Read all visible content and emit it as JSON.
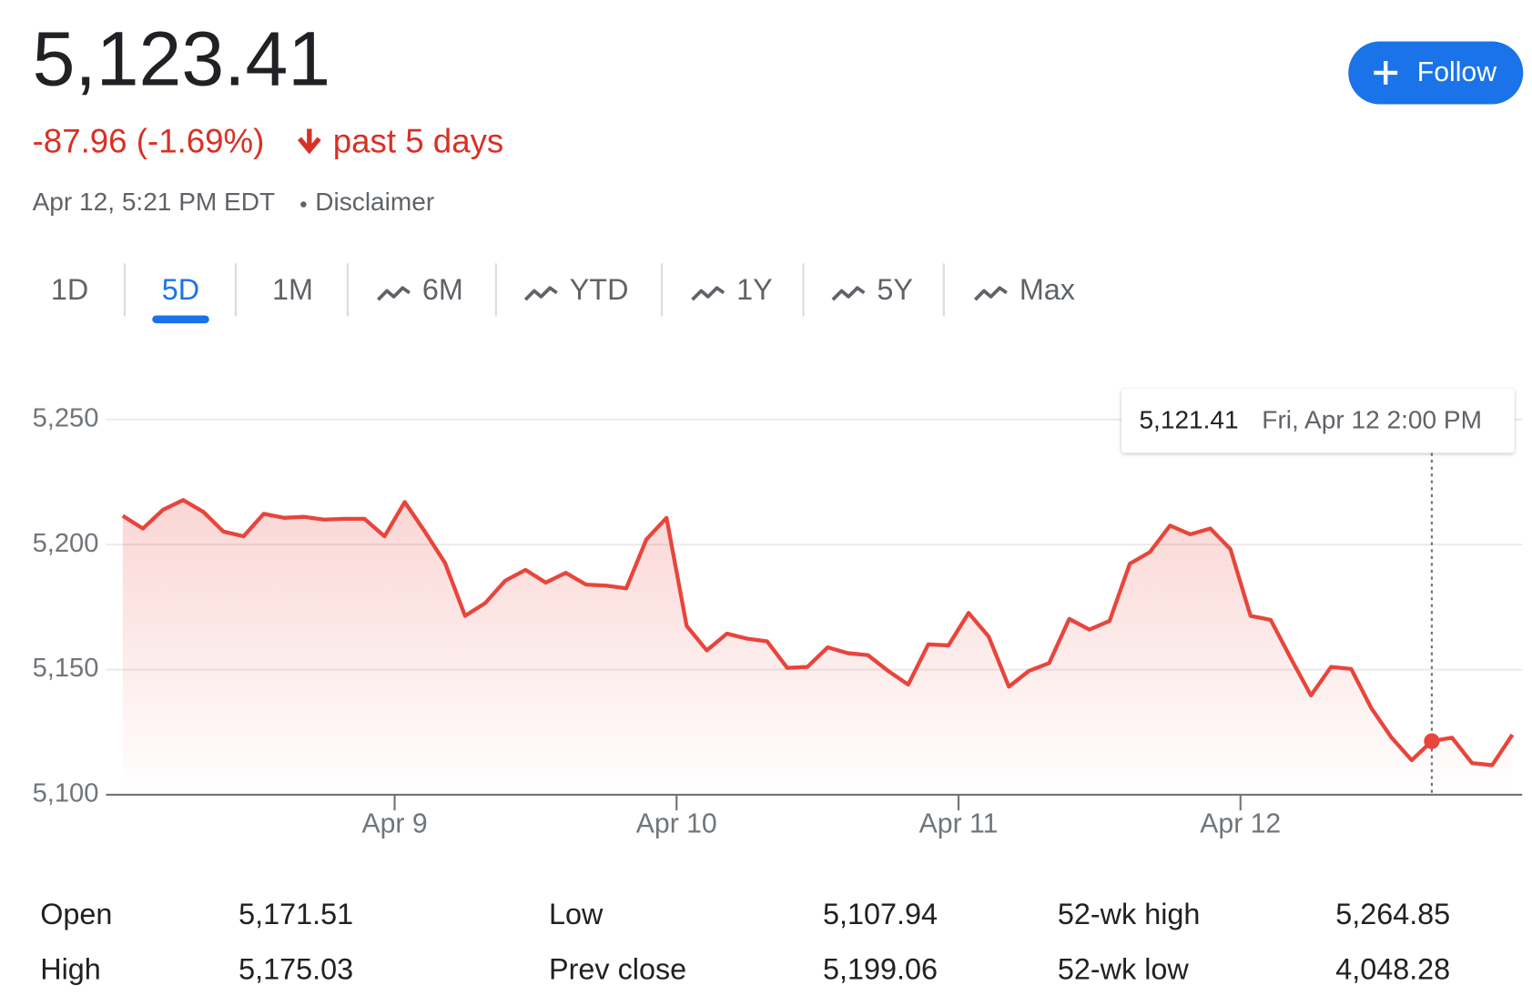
{
  "header": {
    "price": "5,123.41",
    "change": "-87.96 (-1.69%)",
    "period": "past 5 days",
    "timestamp": "Apr 12, 5:21 PM EDT",
    "disclaimer": "Disclaimer",
    "follow": "Follow"
  },
  "tabs": [
    {
      "label": "1D",
      "icon": false
    },
    {
      "label": "5D",
      "icon": false
    },
    {
      "label": "1M",
      "icon": false
    },
    {
      "label": "6M",
      "icon": true
    },
    {
      "label": "YTD",
      "icon": true
    },
    {
      "label": "1Y",
      "icon": true
    },
    {
      "label": "5Y",
      "icon": true
    },
    {
      "label": "Max",
      "icon": true
    }
  ],
  "selected_tab": 1,
  "chart_data": {
    "type": "line",
    "color": "#e8453c",
    "x": [
      0,
      1,
      2,
      3,
      4,
      5,
      6,
      7,
      8,
      9,
      10,
      11,
      12,
      13,
      14,
      15,
      16,
      17,
      18,
      19,
      20,
      21,
      22,
      23,
      24,
      25,
      26,
      27,
      28,
      29,
      30,
      31,
      32,
      33,
      34,
      35,
      36,
      37,
      38,
      39,
      40,
      41,
      42,
      43,
      44,
      45,
      46,
      47,
      48,
      49,
      50,
      51,
      52,
      53,
      54,
      55,
      56,
      57,
      58,
      59,
      60,
      61,
      62,
      63,
      64,
      65,
      66,
      67,
      68,
      69
    ],
    "values": [
      5211.5,
      5206.4,
      5213.9,
      5217.8,
      5213.1,
      5205.2,
      5203.3,
      5212.3,
      5210.7,
      5211.1,
      5210.0,
      5210.3,
      5210.3,
      5203.3,
      5217.0,
      5205.2,
      5192.7,
      5171.5,
      5176.6,
      5185.6,
      5189.9,
      5184.8,
      5188.7,
      5184.0,
      5183.6,
      5182.5,
      5202.1,
      5210.7,
      5167.5,
      5157.7,
      5164.4,
      5162.4,
      5161.3,
      5150.7,
      5151.1,
      5158.9,
      5156.6,
      5155.8,
      5149.5,
      5144.0,
      5160.1,
      5159.7,
      5172.7,
      5163.2,
      5143.2,
      5149.5,
      5152.6,
      5170.3,
      5166.0,
      5169.5,
      5192.3,
      5197.0,
      5207.6,
      5204.1,
      5206.4,
      5198.2,
      5171.5,
      5169.9,
      5154.6,
      5139.7,
      5151.1,
      5150.3,
      5134.6,
      5122.8,
      5113.8,
      5121.41,
      5122.8,
      5112.6,
      5111.8,
      5124.0
    ],
    "xlim": [
      0,
      69
    ],
    "xticks": [
      {
        "value": 13.5,
        "label": "Apr 9"
      },
      {
        "value": 27.5,
        "label": "Apr 10"
      },
      {
        "value": 41.5,
        "label": "Apr 11"
      },
      {
        "value": 55.5,
        "label": "Apr 12"
      }
    ],
    "ylim": [
      5100,
      5250
    ],
    "yticks": [
      {
        "value": 5100,
        "label": "5,100"
      },
      {
        "value": 5150,
        "label": "5,150"
      },
      {
        "value": 5200,
        "label": "5,200"
      },
      {
        "value": 5250,
        "label": "5,250"
      }
    ],
    "grid": true,
    "tooltip": {
      "x": 65,
      "value": "5,121.41",
      "time": "Fri, Apr 12 2:00 PM"
    }
  },
  "stats": {
    "rows": [
      [
        "Open",
        "5,171.51",
        "Low",
        "5,107.94",
        "52-wk high",
        "5,264.85"
      ],
      [
        "High",
        "5,175.03",
        "Prev close",
        "5,199.06",
        "52-wk low",
        "4,048.28"
      ]
    ]
  }
}
